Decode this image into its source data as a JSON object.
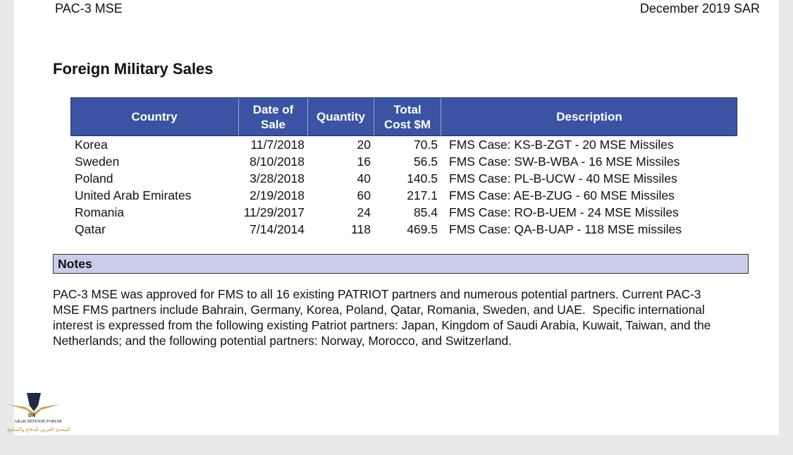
{
  "header": {
    "left": "PAC-3 MSE",
    "right": "December 2019 SAR"
  },
  "title": "Foreign Military Sales",
  "table": {
    "columns": [
      "Country",
      "Date of Sale",
      "Quantity",
      "Total Cost $M",
      "Description"
    ],
    "rows": [
      [
        "Korea",
        "11/7/2018",
        "20",
        "70.5",
        "FMS Case: KS-B-ZGT - 20 MSE Missiles"
      ],
      [
        "Sweden",
        "8/10/2018",
        "16",
        "56.5",
        "FMS Case: SW-B-WBA - 16 MSE Missiles"
      ],
      [
        "Poland",
        "3/28/2018",
        "40",
        "140.5",
        "FMS Case: PL-B-UCW - 40 MSE Missiles"
      ],
      [
        "United Arab Emirates",
        "2/19/2018",
        "60",
        "217.1",
        "FMS Case: AE-B-ZUG - 60 MSE Missiles"
      ],
      [
        "Romania",
        "11/29/2017",
        "24",
        "85.4",
        "FMS Case: RO-B-UEM - 24 MSE Missiles"
      ],
      [
        "Qatar",
        "7/14/2014",
        "118",
        "469.5",
        "FMS Case: QA-B-UAP - 118 MSE missiles"
      ]
    ]
  },
  "notes": {
    "heading": "Notes",
    "lines": [
      "PAC-3 MSE was approved for FMS to all 16 existing PATRIOT partners and numerous potential partners. Current PAC-3",
      "MSE FMS partners include Bahrain, Germany, Korea, Poland, Qatar, Romania, Sweden, and UAE.  Specific international",
      "interest is expressed from the following existing Patriot partners: Japan, Kingdom of Saudi Arabia, Kuwait, Taiwan, and the",
      "Netherlands; and the following potential partners: Norway, Morocco, and Switzerland."
    ]
  },
  "watermark": {
    "logo": "DA",
    "name": "ARAB DEFENSE FORUM",
    "arabic": "المنتدى العربي للدفاع والتسليح"
  }
}
